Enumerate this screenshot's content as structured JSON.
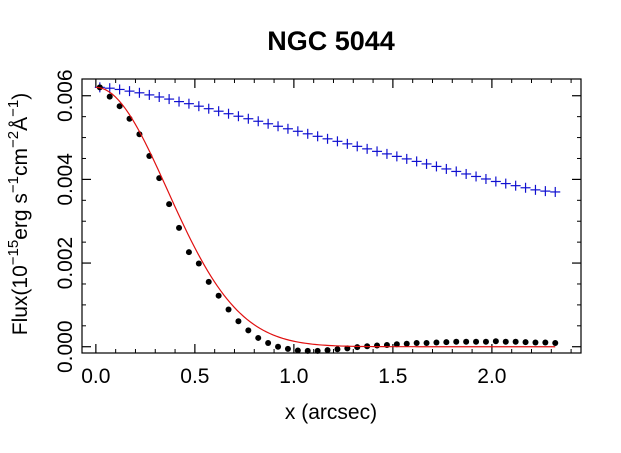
{
  "chart_data": {
    "type": "scatter",
    "title": "NGC 5044",
    "xlabel": "x (arcsec)",
    "ylabel": {
      "prefix": "Flux(10",
      "exp1": "−15",
      "part2": "erg s",
      "exp2": "−1",
      "part3": "cm",
      "exp3": "−2",
      "unit": "Å",
      "exp4": "−1",
      "suffix": ")"
    },
    "xlim": [
      -0.07,
      2.45
    ],
    "ylim": [
      -0.00015,
      0.0064
    ],
    "xticks": [
      0.0,
      0.5,
      1.0,
      1.5,
      2.0
    ],
    "xtick_labels": [
      "0.0",
      "0.5",
      "1.0",
      "1.5",
      "2.0"
    ],
    "yticks": [
      0.0,
      0.002,
      0.004,
      0.006
    ],
    "ytick_labels": [
      "0.000",
      "0.002",
      "0.004",
      "0.006"
    ],
    "series": [
      {
        "name": "blue-cross-profile",
        "marker": "plus",
        "color": "#1010d0",
        "x": [
          0.02,
          0.07,
          0.12,
          0.17,
          0.22,
          0.27,
          0.32,
          0.37,
          0.42,
          0.47,
          0.52,
          0.57,
          0.62,
          0.67,
          0.72,
          0.77,
          0.82,
          0.87,
          0.92,
          0.97,
          1.02,
          1.07,
          1.12,
          1.17,
          1.22,
          1.27,
          1.32,
          1.37,
          1.42,
          1.47,
          1.52,
          1.57,
          1.62,
          1.67,
          1.72,
          1.77,
          1.82,
          1.87,
          1.92,
          1.97,
          2.02,
          2.07,
          2.12,
          2.17,
          2.22,
          2.27,
          2.32
        ],
        "y": [
          0.0062,
          0.00618,
          0.00615,
          0.00611,
          0.00607,
          0.00602,
          0.00597,
          0.00592,
          0.00586,
          0.00581,
          0.00575,
          0.00569,
          0.00563,
          0.00557,
          0.00551,
          0.00545,
          0.00539,
          0.00533,
          0.00527,
          0.00521,
          0.00515,
          0.00509,
          0.00503,
          0.00497,
          0.00491,
          0.00485,
          0.00479,
          0.00473,
          0.00467,
          0.00461,
          0.00455,
          0.00449,
          0.00443,
          0.00437,
          0.00431,
          0.00425,
          0.00419,
          0.00413,
          0.00407,
          0.00401,
          0.00395,
          0.0039,
          0.00385,
          0.0038,
          0.00375,
          0.00372,
          0.0037
        ]
      },
      {
        "name": "black-dot-profile",
        "marker": "circle",
        "color": "#000000",
        "x": [
          0.02,
          0.07,
          0.12,
          0.17,
          0.22,
          0.27,
          0.32,
          0.37,
          0.42,
          0.47,
          0.52,
          0.57,
          0.62,
          0.67,
          0.72,
          0.77,
          0.82,
          0.87,
          0.92,
          0.97,
          1.02,
          1.07,
          1.12,
          1.17,
          1.22,
          1.27,
          1.32,
          1.37,
          1.42,
          1.47,
          1.52,
          1.57,
          1.62,
          1.67,
          1.72,
          1.77,
          1.82,
          1.87,
          1.92,
          1.97,
          2.02,
          2.07,
          2.12,
          2.17,
          2.22,
          2.27,
          2.32
        ],
        "y": [
          0.0062,
          0.00598,
          0.00575,
          0.00545,
          0.00508,
          0.00456,
          0.00403,
          0.00341,
          0.00284,
          0.00226,
          0.00199,
          0.00155,
          0.00122,
          0.00089,
          0.00061,
          0.00039,
          0.00021,
          9e-05,
          0.0,
          -5e-05,
          -9e-05,
          -0.0001,
          -0.0001,
          -8e-05,
          -6e-05,
          -4e-05,
          -1e-05,
          1e-05,
          3e-05,
          4e-05,
          6e-05,
          7e-05,
          9e-05,
          9e-05,
          0.0001,
          0.00011,
          0.00012,
          0.00012,
          0.00012,
          0.00012,
          0.00013,
          0.00012,
          0.00012,
          0.00011,
          0.0001,
          0.0001,
          9e-05
        ]
      },
      {
        "name": "red-fit-curve",
        "marker": "line",
        "color": "#e01010",
        "model": "gaussian",
        "amplitude": 0.0062,
        "center": 0.0,
        "sigma": 0.36,
        "x_range": [
          0.0,
          2.32
        ]
      }
    ]
  }
}
